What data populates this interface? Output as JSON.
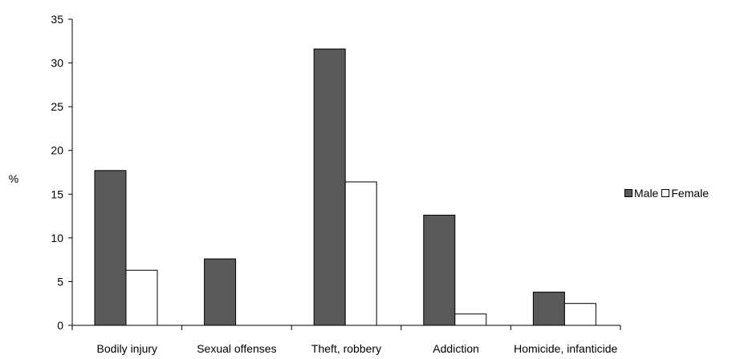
{
  "chart_data": {
    "type": "bar",
    "categories": [
      "Bodily injury",
      "Sexual offenses",
      "Theft, robbery",
      "Addiction",
      "Homicide, infanticide"
    ],
    "series": [
      {
        "name": "Male",
        "values": [
          17.7,
          7.6,
          31.6,
          12.6,
          3.8
        ],
        "color": "#595959"
      },
      {
        "name": "Female",
        "values": [
          6.3,
          0,
          16.4,
          1.3,
          2.5
        ],
        "color": "#ffffff"
      }
    ],
    "ylabel": "%",
    "ylim": [
      0,
      35
    ],
    "yticks": [
      "0",
      "5",
      "10",
      "15",
      "20",
      "25",
      "30",
      "35"
    ],
    "grid": false,
    "legend_position": "right"
  }
}
